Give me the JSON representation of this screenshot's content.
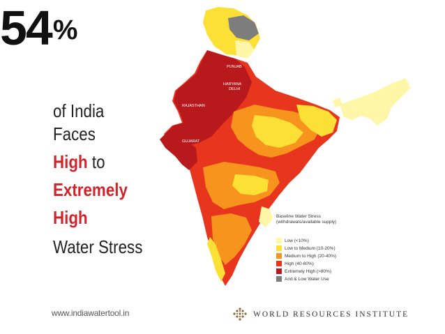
{
  "headline": {
    "number": "54",
    "percent_sign": "%"
  },
  "tagline": {
    "line1": "of India",
    "line2": "Faces",
    "line3_emphasis": "High",
    "line3_rest": " to",
    "line4_emphasis": "Extremely",
    "line5_emphasis": "High",
    "line6": "Water Stress"
  },
  "map": {
    "state_labels": [
      "PUNJAB",
      "HARYANA",
      "DELHI",
      "RAJASTHAN",
      "GUJARAT"
    ],
    "colors": {
      "low": "#fff6a8",
      "low_to_medium": "#fde036",
      "medium_to_high": "#f7941d",
      "high": "#e8351d",
      "extremely_high": "#b8191d",
      "arid": "#7d7d7d"
    }
  },
  "legend": {
    "title": "Baseline Water Stress (withdrawals/available supply)",
    "items": [
      {
        "label": "Low (<10%)",
        "color": "#fff6a8"
      },
      {
        "label": "Low to Medium (10-20%)",
        "color": "#fde036"
      },
      {
        "label": "Medium to High (20-40%)",
        "color": "#f7941d"
      },
      {
        "label": "High (40-80%)",
        "color": "#e8351d"
      },
      {
        "label": "Extremely High (>80%)",
        "color": "#b8191d"
      },
      {
        "label": "Arid & Low Water Use",
        "color": "#7d7d7d"
      }
    ]
  },
  "footer": {
    "url": "www.indiawatertool.in",
    "org": "WORLD RESOURCES INSTITUTE"
  }
}
